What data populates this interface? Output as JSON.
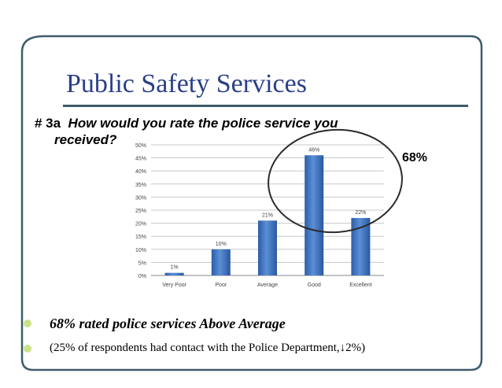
{
  "slide": {
    "title": "Public Safety Services",
    "question_number": "# 3a",
    "question_text_line1": "How would you rate the police service you",
    "question_text_line2": "received?",
    "highlight_value": "68%",
    "bullets": [
      "68% rated police services Above Average",
      "(25% of respondents had contact with the Police Department,↓2%)"
    ],
    "colors": {
      "title": "#2a3f88",
      "frame": "#3e5c6c",
      "bar": "#3f76c0",
      "bullet": "#cbe28a"
    }
  },
  "chart_data": {
    "type": "bar",
    "categories": [
      "Very Poor",
      "Poor",
      "Average",
      "Good",
      "Excellent"
    ],
    "values": [
      1,
      10,
      21,
      46,
      22
    ],
    "data_labels": [
      "1%",
      "10%",
      "21%",
      "46%",
      "22%"
    ],
    "y_ticks": [
      "0%",
      "5%",
      "10%",
      "15%",
      "20%",
      "25%",
      "30%",
      "35%",
      "40%",
      "45%",
      "50%"
    ],
    "ylim": [
      0,
      50
    ],
    "grid": true,
    "title": "",
    "xlabel": "",
    "ylabel": "",
    "annotation": "ellipse around Good and Excellent"
  }
}
